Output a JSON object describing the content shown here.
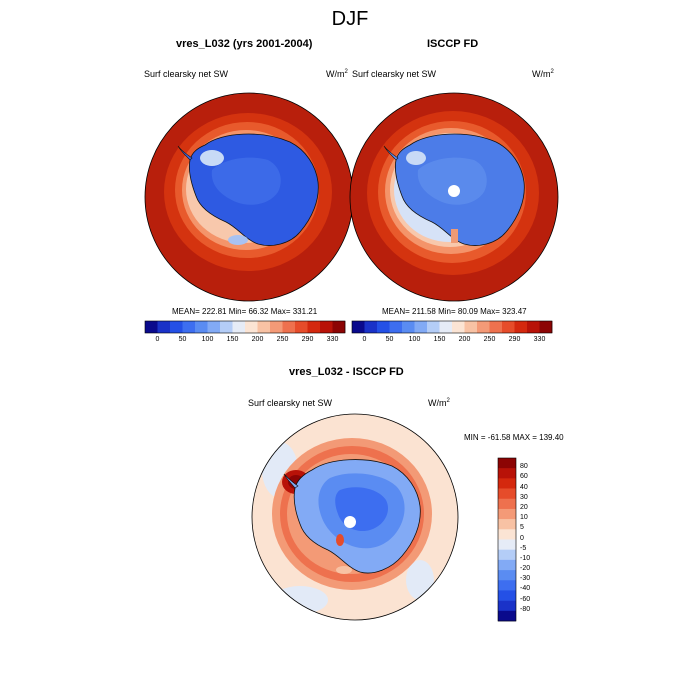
{
  "title": "DJF",
  "panel1": {
    "title": "vres_L032 (yrs 2001-2004)",
    "left_label": "Surf clearsky net SW",
    "units": "W/m",
    "units_sup": "2",
    "stats": "MEAN= 222.81  Min=  66.32  Max= 331.21"
  },
  "panel2": {
    "title": "ISCCP FD",
    "left_label": "Surf clearsky net SW",
    "units": "W/m",
    "units_sup": "2",
    "stats": "MEAN= 211.58  Min=  80.09  Max= 323.47"
  },
  "panel3": {
    "title": "vres_L032 - ISCCP FD",
    "left_label": "Surf clearsky net SW",
    "units": "W/m",
    "units_sup": "2",
    "stats": "MIN = -61.58 MAX = 139.40"
  },
  "colorbar_top": {
    "labels": [
      "0",
      "50",
      "100",
      "150",
      "200",
      "250",
      "290",
      "330"
    ],
    "colors": [
      "#0a0a8c",
      "#1a32c8",
      "#2450e6",
      "#3d6ef0",
      "#5a8cf2",
      "#82aaf5",
      "#b4cdf7",
      "#e6ecf7",
      "#fbe4d4",
      "#f8c2a4",
      "#f49a77",
      "#ee714e",
      "#e64c2a",
      "#d4280e",
      "#b81208",
      "#8c0404"
    ]
  },
  "colorbar_diff": {
    "labels": [
      "80",
      "60",
      "40",
      "30",
      "20",
      "10",
      "5",
      "0",
      "-5",
      "-10",
      "-20",
      "-30",
      "-40",
      "-60",
      "-80"
    ],
    "colors": [
      "#8c0404",
      "#b81208",
      "#d4280e",
      "#e64c2a",
      "#ee714e",
      "#f49a77",
      "#f8c2a4",
      "#fbe4d4",
      "#e6ecf7",
      "#b4cdf7",
      "#82aaf5",
      "#5a8cf2",
      "#3d6ef0",
      "#2450e6",
      "#1a32c8",
      "#0a0a8c"
    ]
  }
}
